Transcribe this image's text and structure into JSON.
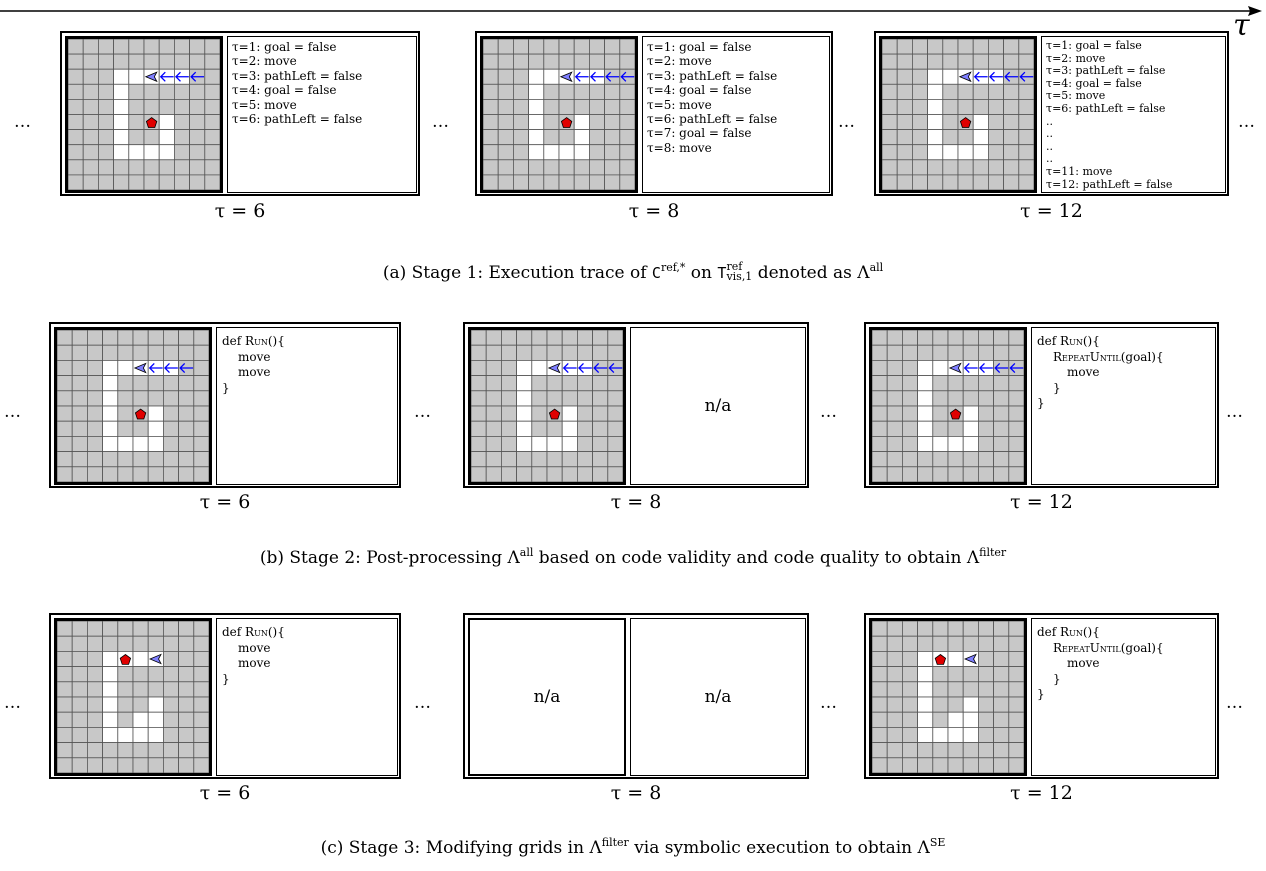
{
  "time_axis": {
    "symbol": "τ"
  },
  "ellipsis": "…",
  "row_a": {
    "frames": [
      {
        "tau_label": "τ = 6",
        "trace": [
          "τ=1: goal = false",
          "τ=2: move",
          "τ=3: pathLeft = false",
          "τ=4: goal = false",
          "τ=5: move",
          "τ=6: pathLeft = false"
        ]
      },
      {
        "tau_label": "τ = 8",
        "trace": [
          "τ=1: goal = false",
          "τ=2: move",
          "τ=3: pathLeft = false",
          "τ=4: goal = false",
          "τ=5: move",
          "τ=6: pathLeft = false",
          "τ=7: goal = false",
          "τ=8: move"
        ]
      },
      {
        "tau_label": "τ = 12",
        "trace": [
          "τ=1: goal = false",
          "τ=2: move",
          "τ=3: pathLeft = false",
          "τ=4: goal = false",
          "τ=5: move",
          "τ=6: pathLeft = false",
          "..",
          "..",
          "..",
          "..",
          "τ=11: move",
          "τ=12: pathLeft = false"
        ]
      }
    ],
    "caption": {
      "prefix": "(a) Stage 1: Execution trace of ",
      "code_name": "C",
      "code_sup": "ref,*",
      "mid": " on ",
      "task_name": "T",
      "task_sup": "ref",
      "task_sub": "vis,1",
      "suffix": " denoted as Λ",
      "suffix_sup": "all"
    }
  },
  "row_b": {
    "frames": [
      {
        "tau_label": "τ = 6",
        "code": [
          "def Run(){",
          "move",
          "move",
          "}"
        ]
      },
      {
        "tau_label": "τ = 8",
        "na": "n/a"
      },
      {
        "tau_label": "τ = 12",
        "code": [
          "def Run(){",
          "RepeatUntil(goal){",
          "move",
          "}",
          "}"
        ]
      }
    ],
    "caption": {
      "prefix": "(b) Stage 2: Post-processing Λ",
      "prefix_sup": "all",
      "mid": " based on code validity and code quality to obtain Λ",
      "mid_sup": "filter"
    }
  },
  "row_c": {
    "frames": [
      {
        "tau_label": "τ = 6",
        "code": [
          "def Run(){",
          "move",
          "move",
          "}"
        ]
      },
      {
        "tau_label": "τ = 8",
        "na_left": "n/a",
        "na_right": "n/a"
      },
      {
        "tau_label": "τ = 12",
        "code": [
          "def Run(){",
          "RepeatUntil(goal){",
          "move",
          "}",
          "}"
        ]
      }
    ],
    "caption": {
      "prefix": "(c) Stage 3: Modifying grids in Λ",
      "prefix_sup": "filter",
      "mid": " via symbolic execution to obtain Λ",
      "mid_sup": "SE"
    }
  },
  "colors": {
    "wall": "#c8c8c8",
    "free": "#ffffff",
    "goal": "#e00000",
    "agent": "#7f7fff",
    "trail": "#0000ff",
    "grid_line": "#555555"
  }
}
